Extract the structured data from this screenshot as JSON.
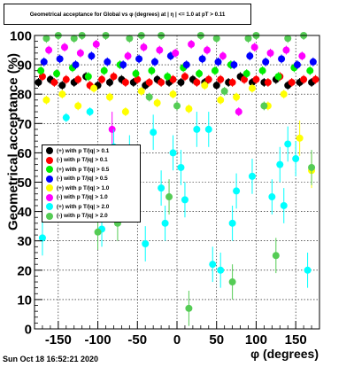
{
  "title": "Geometrical acceptance for Global vs φ (degrees) at | η | <= 1.0 at pT > 0.11",
  "timestamp": "Sun Oct 18 16:52:21 2020",
  "chart_data": {
    "type": "scatter",
    "xlabel": "φ (degrees)",
    "ylabel": "Geometrical acceptance (%)",
    "xlim": [
      -180,
      180
    ],
    "ylim": [
      0,
      100
    ],
    "grid": true,
    "legend_position": "left-middle",
    "x_ticks": [
      -150,
      -100,
      -50,
      0,
      50,
      100,
      150
    ],
    "y_ticks": [
      0,
      10,
      20,
      30,
      40,
      50,
      60,
      70,
      80,
      90,
      100
    ],
    "series": [
      {
        "name": "(+) with p T/|q| > 0.1",
        "color": "#000000",
        "x": [
          -175,
          -160,
          -145,
          -130,
          -115,
          -100,
          -85,
          -70,
          -55,
          -40,
          -25,
          -10,
          5,
          20,
          35,
          50,
          65,
          80,
          95,
          110,
          125,
          140,
          155,
          170
        ],
        "y": [
          84,
          85,
          83,
          84,
          86,
          83,
          84,
          85,
          84,
          83,
          85,
          84,
          84,
          85,
          84,
          83,
          84,
          86,
          84,
          84,
          85,
          83,
          84,
          84
        ]
      },
      {
        "name": "(-) with p T/|q| > 0.1",
        "color": "#ff0000",
        "x": [
          -170,
          -155,
          -140,
          -125,
          -110,
          -95,
          -80,
          -65,
          -50,
          -35,
          -20,
          -5,
          10,
          25,
          40,
          55,
          70,
          85,
          100,
          115,
          130,
          145,
          160,
          175
        ],
        "y": [
          86,
          84,
          85,
          85,
          83,
          85,
          86,
          84,
          85,
          84,
          84,
          85,
          86,
          84,
          85,
          85,
          84,
          85,
          85,
          84,
          86,
          84,
          85,
          85
        ]
      },
      {
        "name": "(+) with p T/|q| > 0.5",
        "color": "#00ee00",
        "x": [
          -172,
          -152,
          -132,
          -112,
          -92,
          -72,
          -52,
          -32,
          -12,
          8,
          28,
          48,
          68,
          88,
          108,
          128,
          148,
          168
        ],
        "y": [
          88,
          87,
          89,
          86,
          88,
          90,
          87,
          88,
          86,
          89,
          87,
          88,
          90,
          87,
          88,
          86,
          89,
          88
        ]
      },
      {
        "name": "(-) with p T/|q| > 0.5",
        "color": "#0000ff",
        "x": [
          -168,
          -148,
          -128,
          -108,
          -88,
          -68,
          -48,
          -28,
          -8,
          12,
          32,
          52,
          72,
          92,
          112,
          132,
          152,
          172
        ],
        "y": [
          91,
          92,
          90,
          93,
          91,
          90,
          92,
          91,
          93,
          90,
          92,
          91,
          90,
          93,
          91,
          92,
          90,
          91
        ]
      },
      {
        "name": "(+) with p T/|q| > 1.0",
        "color": "#ffff00",
        "x": [
          -165,
          -145,
          -125,
          -105,
          -85,
          -65,
          -45,
          -25,
          -5,
          15,
          35,
          55,
          75,
          95,
          115,
          135,
          155,
          170
        ],
        "y": [
          78,
          80,
          76,
          82,
          79,
          74,
          81,
          77,
          80,
          75,
          83,
          78,
          79,
          82,
          76,
          80,
          65,
          54
        ]
      },
      {
        "name": "(-) with p T/|q| > 1.0",
        "color": "#ff00ff",
        "x": [
          -162,
          -142,
          -122,
          -102,
          -82,
          -62,
          -42,
          -22,
          -2,
          18,
          38,
          58,
          78,
          98,
          118,
          138,
          158
        ],
        "y": [
          95,
          96,
          94,
          97,
          68,
          93,
          96,
          95,
          94,
          97,
          95,
          93,
          74,
          96,
          94,
          95,
          93
        ]
      },
      {
        "name": "(+) with p T/|q| > 2.0",
        "color": "#00ffff",
        "x": [
          -170,
          -140,
          -110,
          -95,
          -80,
          -60,
          -40,
          -30,
          -20,
          -15,
          -5,
          5,
          10,
          25,
          40,
          45,
          55,
          70,
          75,
          95,
          120,
          130,
          135,
          140,
          150,
          165
        ],
        "y": [
          31,
          72,
          74,
          34,
          62,
          60,
          29,
          67,
          48,
          36,
          60,
          55,
          44,
          68,
          68,
          22,
          20,
          36,
          47,
          52,
          45,
          56,
          42,
          63,
          58,
          20
        ]
      },
      {
        "name": "(-) with p T/|q| > 2.0",
        "color": "#55cc55",
        "x": [
          -165,
          -150,
          -130,
          -120,
          -100,
          -90,
          -75,
          -60,
          -45,
          -35,
          -20,
          -10,
          0,
          15,
          30,
          50,
          60,
          70,
          90,
          100,
          110,
          125,
          140,
          160,
          170
        ],
        "y": [
          99,
          100,
          99,
          100,
          33,
          100,
          36,
          99,
          100,
          79,
          100,
          45,
          76,
          7,
          100,
          99,
          81,
          16,
          99,
          100,
          76,
          25,
          99,
          100,
          55
        ]
      }
    ]
  }
}
